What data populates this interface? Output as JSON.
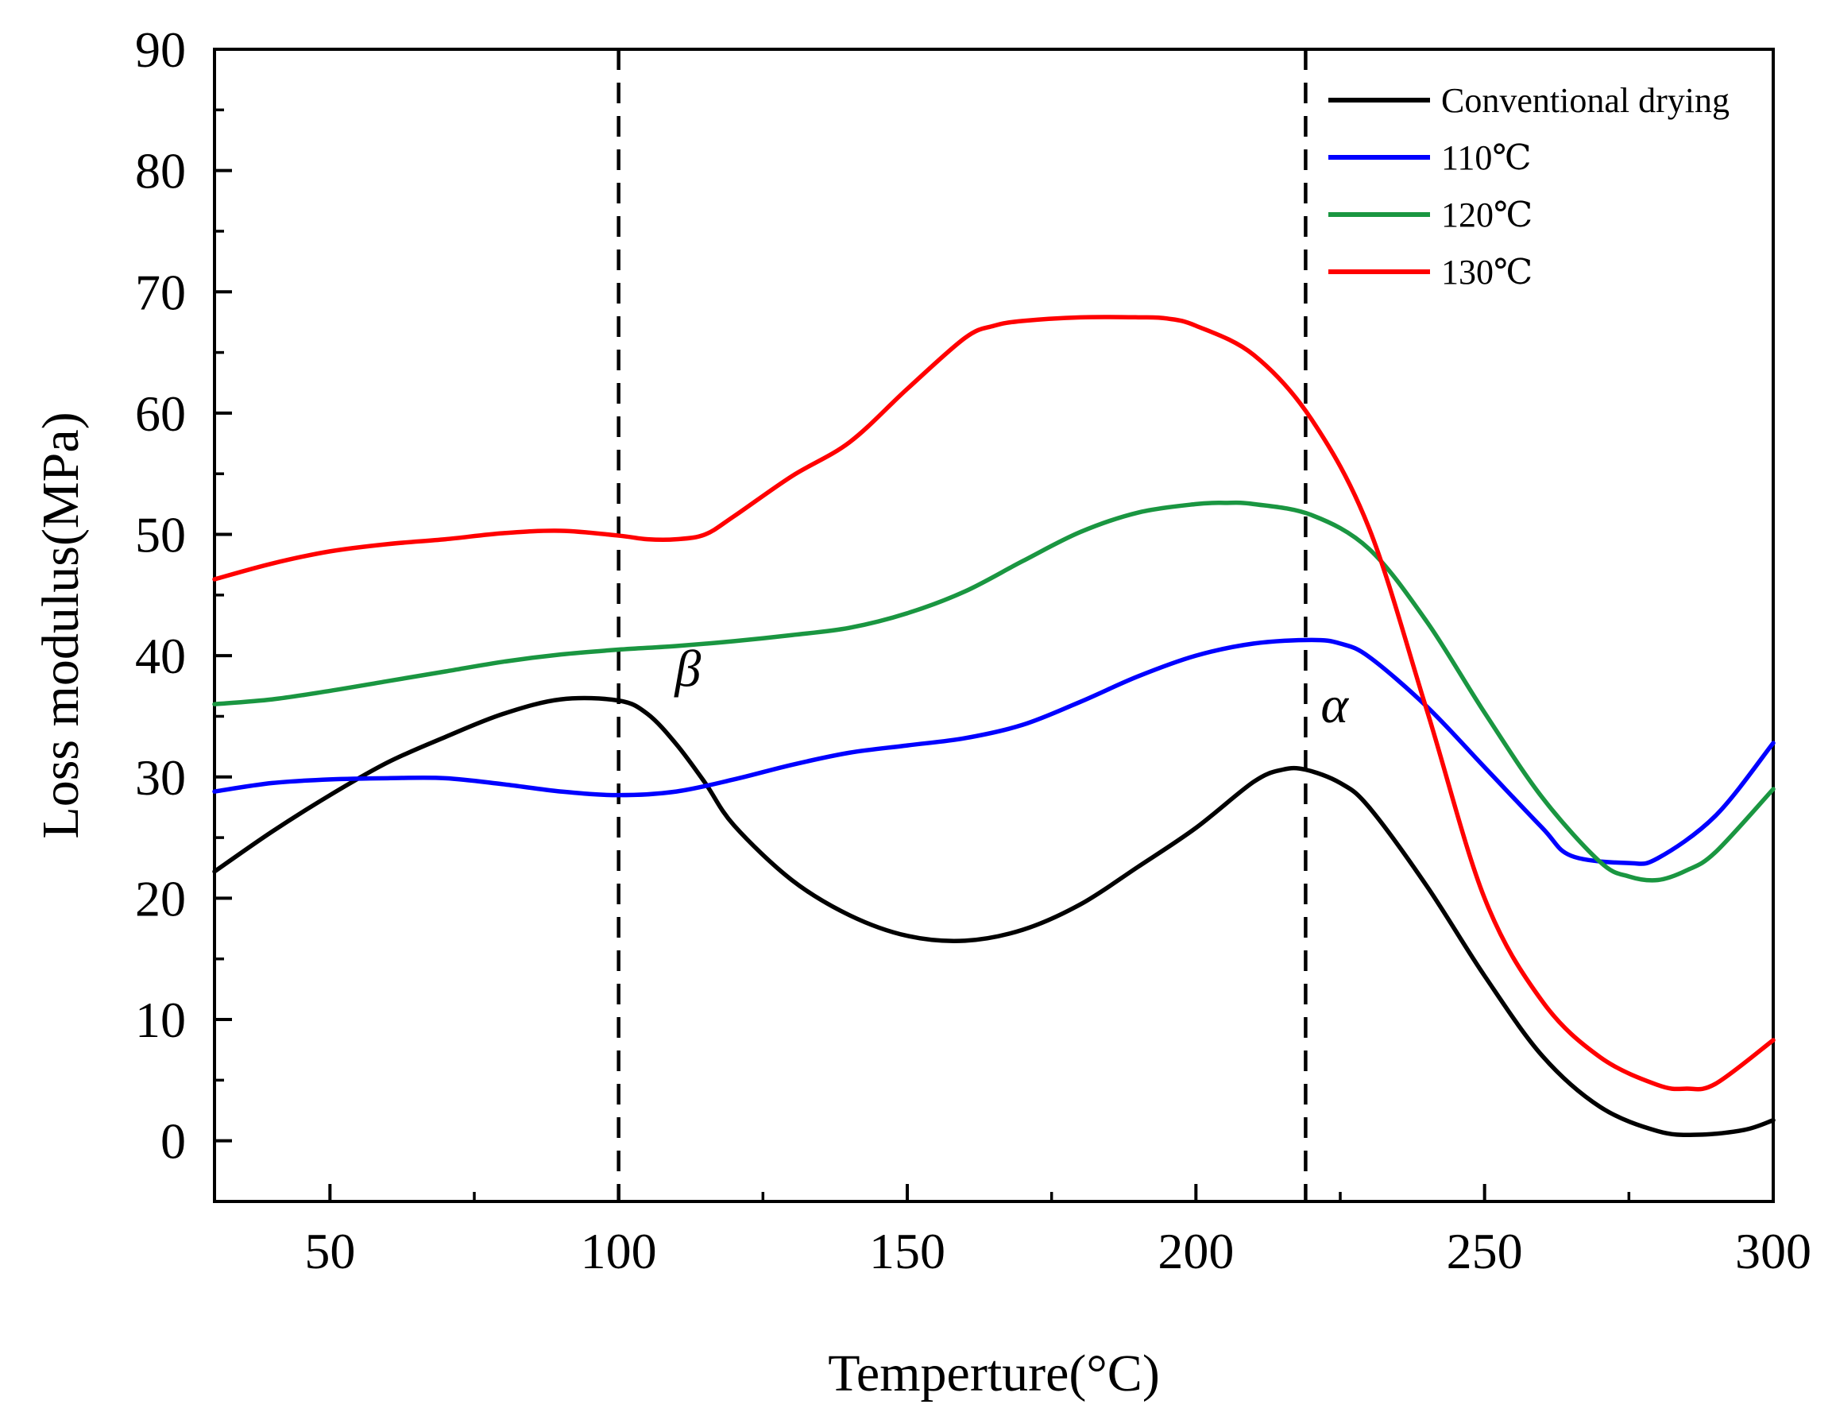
{
  "chart_data": {
    "type": "line",
    "title": "",
    "xlabel": "Temperture(°C)",
    "ylabel": "Loss modulus(MPa)",
    "xlim": [
      30,
      300
    ],
    "ylim": [
      -5,
      90
    ],
    "xticks": [
      "50",
      "100",
      "150",
      "200",
      "250",
      "300"
    ],
    "yticks": [
      "0",
      "10",
      "20",
      "30",
      "40",
      "50",
      "60",
      "70",
      "80",
      "90"
    ],
    "grid": false,
    "legend_position": "top-right",
    "reference_lines": [
      {
        "x": 100,
        "style": "dashed",
        "label": "β"
      },
      {
        "x": 219,
        "style": "dashed",
        "label": "α"
      }
    ],
    "series": [
      {
        "name": "Conventional drying",
        "color": "#000000",
        "x": [
          30,
          40,
          50,
          60,
          70,
          80,
          90,
          100,
          105,
          110,
          115,
          120,
          130,
          140,
          150,
          160,
          170,
          180,
          190,
          200,
          210,
          215,
          219,
          225,
          230,
          240,
          250,
          260,
          270,
          280,
          287,
          295,
          300
        ],
        "y": [
          22.2,
          25.5,
          28.5,
          31.2,
          33.3,
          35.2,
          36.4,
          36.3,
          35.2,
          32.7,
          29.5,
          26.0,
          21.5,
          18.6,
          16.9,
          16.5,
          17.4,
          19.5,
          22.6,
          25.8,
          29.6,
          30.6,
          30.6,
          29.5,
          27.5,
          21.0,
          13.6,
          7.0,
          2.8,
          0.8,
          0.5,
          0.9,
          1.7
        ]
      },
      {
        "name": "110℃",
        "color": "#0000ff",
        "x": [
          30,
          40,
          50,
          60,
          70,
          80,
          90,
          100,
          110,
          120,
          130,
          140,
          150,
          160,
          170,
          180,
          190,
          200,
          210,
          220,
          225,
          230,
          240,
          250,
          260,
          265,
          275,
          280,
          290,
          300
        ],
        "y": [
          28.8,
          29.5,
          29.8,
          29.9,
          29.9,
          29.4,
          28.8,
          28.5,
          28.8,
          29.8,
          31.0,
          32.0,
          32.6,
          33.2,
          34.3,
          36.2,
          38.3,
          40.0,
          41.0,
          41.3,
          41.0,
          39.9,
          35.8,
          30.8,
          25.8,
          23.5,
          22.9,
          23.3,
          26.8,
          32.8
        ]
      },
      {
        "name": "120℃",
        "color": "#1a9641",
        "x": [
          30,
          40,
          50,
          60,
          70,
          80,
          90,
          100,
          110,
          120,
          130,
          140,
          150,
          160,
          170,
          180,
          190,
          200,
          205,
          210,
          220,
          230,
          240,
          250,
          260,
          270,
          275,
          280,
          285,
          290,
          300
        ],
        "y": [
          36.0,
          36.4,
          37.1,
          37.9,
          38.7,
          39.5,
          40.1,
          40.5,
          40.8,
          41.2,
          41.7,
          42.3,
          43.5,
          45.3,
          47.8,
          50.2,
          51.8,
          52.5,
          52.6,
          52.5,
          51.6,
          48.8,
          42.8,
          35.3,
          28.3,
          23.0,
          21.8,
          21.5,
          22.3,
          23.8,
          29.0
        ]
      },
      {
        "name": "130℃",
        "color": "#ff0000",
        "x": [
          30,
          40,
          50,
          60,
          70,
          80,
          90,
          100,
          105,
          110,
          115,
          120,
          130,
          140,
          150,
          160,
          165,
          170,
          180,
          190,
          195,
          200,
          210,
          220,
          230,
          240,
          250,
          260,
          270,
          280,
          285,
          290,
          300
        ],
        "y": [
          46.3,
          47.6,
          48.6,
          49.2,
          49.6,
          50.1,
          50.3,
          49.9,
          49.6,
          49.6,
          50.0,
          51.5,
          54.8,
          57.6,
          62.0,
          66.2,
          67.2,
          67.6,
          67.9,
          67.9,
          67.8,
          67.2,
          64.8,
          59.5,
          50.5,
          35.5,
          20.0,
          11.5,
          6.9,
          4.6,
          4.3,
          4.7,
          8.3
        ]
      }
    ]
  }
}
